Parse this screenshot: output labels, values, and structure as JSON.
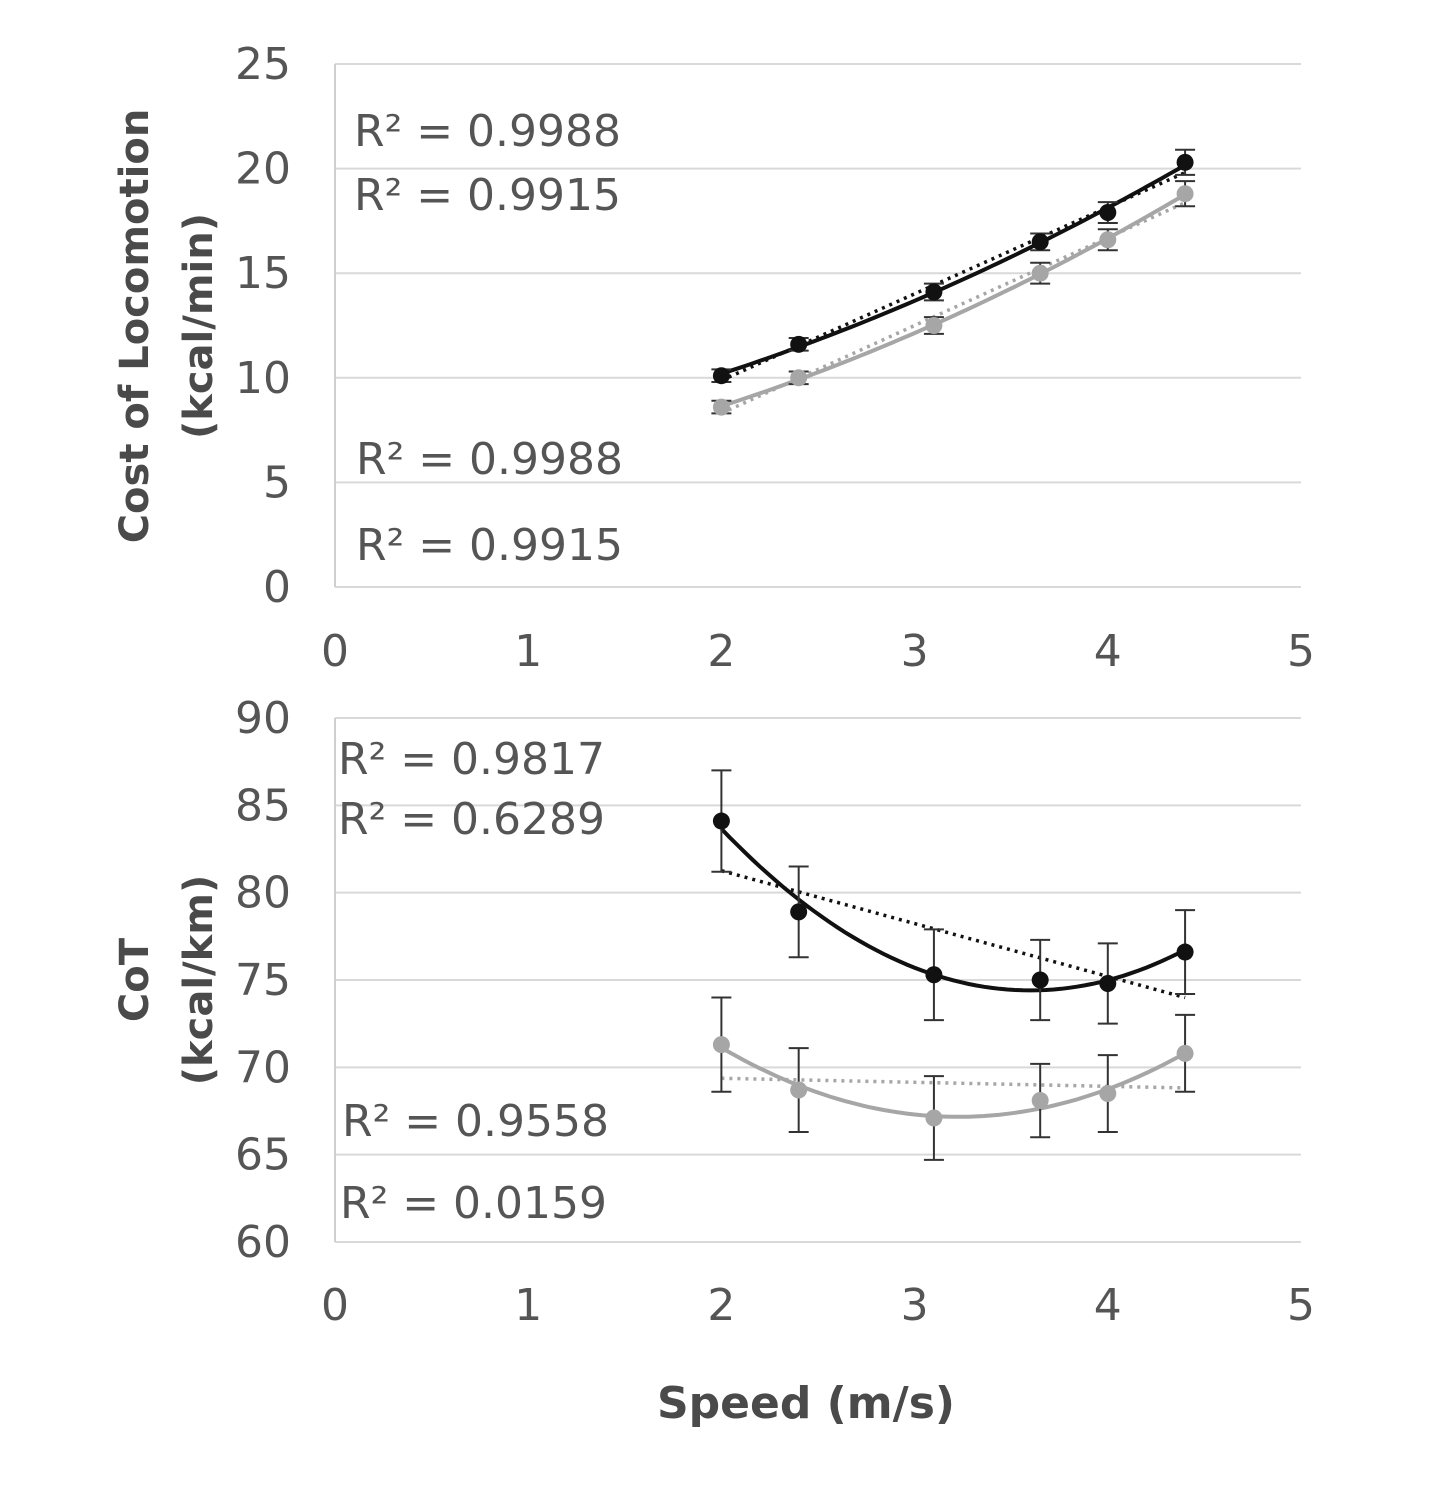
{
  "x_axis_label": "Speed (m/s)",
  "colors": {
    "dark_series": "#111111",
    "light_series": "#a6a6a6",
    "grid": "#d9d9d9"
  },
  "chart_data": [
    {
      "type": "line",
      "ylabel_line1": "Cost of Locomotion",
      "ylabel_line2": "(kcal/min)",
      "xlabel": "Speed (m/s)",
      "xlim": [
        0,
        5
      ],
      "ylim": [
        0,
        25
      ],
      "x_ticks": [
        "0",
        "1",
        "2",
        "3",
        "4",
        "5"
      ],
      "y_ticks": [
        "0",
        "5",
        "10",
        "15",
        "20",
        "25"
      ],
      "grid": true,
      "series": [
        {
          "color": "#111111",
          "x": [
            2.0,
            2.4,
            3.1,
            3.65,
            4.0,
            4.4
          ],
          "y": [
            10.1,
            11.6,
            14.1,
            16.5,
            17.9,
            20.3
          ],
          "error": [
            0.3,
            0.3,
            0.4,
            0.4,
            0.5,
            0.6
          ],
          "fit": "polynomial",
          "trend": "linear"
        },
        {
          "color": "#a6a6a6",
          "x": [
            2.0,
            2.4,
            3.1,
            3.65,
            4.0,
            4.4
          ],
          "y": [
            8.6,
            10.0,
            12.5,
            15.0,
            16.6,
            18.8
          ],
          "error": [
            0.3,
            0.3,
            0.4,
            0.5,
            0.5,
            0.6
          ],
          "fit": "polynomial",
          "trend": "linear"
        }
      ],
      "annotations": [
        "R² = 0.9988",
        "R² = 0.9915",
        "R² = 0.9988",
        "R² = 0.9915"
      ]
    },
    {
      "type": "line",
      "ylabel_line1": "CoT",
      "ylabel_line2": "(kcal/km)",
      "xlabel": "Speed (m/s)",
      "xlim": [
        0,
        5
      ],
      "ylim": [
        60,
        90
      ],
      "x_ticks": [
        "0",
        "1",
        "2",
        "3",
        "4",
        "5"
      ],
      "y_ticks": [
        "60",
        "65",
        "70",
        "75",
        "80",
        "85",
        "90"
      ],
      "grid": true,
      "series": [
        {
          "color": "#111111",
          "x": [
            2.0,
            2.4,
            3.1,
            3.65,
            4.0,
            4.4
          ],
          "y": [
            84.1,
            78.9,
            75.3,
            75.0,
            74.8,
            76.6
          ],
          "error": [
            2.9,
            2.6,
            2.6,
            2.3,
            2.3,
            2.4
          ],
          "fit": "polynomial",
          "trend": "linear"
        },
        {
          "color": "#a6a6a6",
          "x": [
            2.0,
            2.4,
            3.1,
            3.65,
            4.0,
            4.4
          ],
          "y": [
            71.3,
            68.7,
            67.1,
            68.1,
            68.5,
            70.8
          ],
          "error": [
            2.7,
            2.4,
            2.4,
            2.1,
            2.2,
            2.2
          ],
          "fit": "polynomial",
          "trend": "linear"
        }
      ],
      "annotations": [
        "R² = 0.9817",
        "R² = 0.6289",
        "R² = 0.9558",
        "R² = 0.0159"
      ]
    }
  ]
}
